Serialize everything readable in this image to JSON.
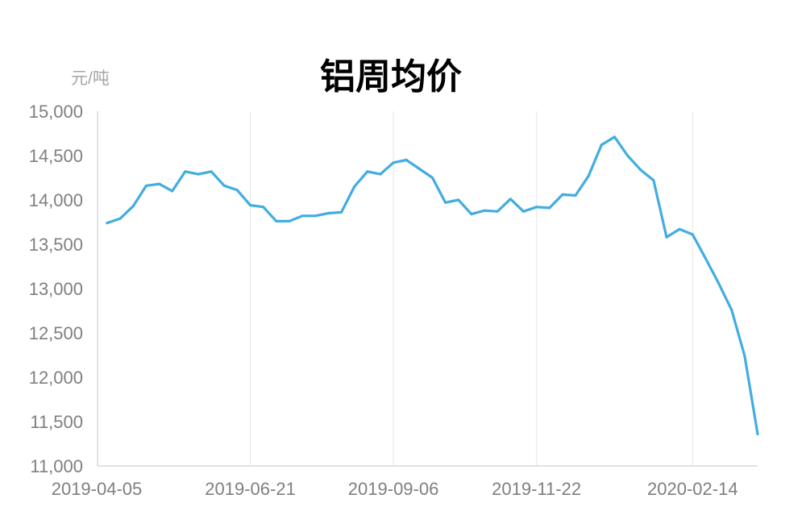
{
  "chart_data": {
    "type": "line",
    "title": "铝周均价",
    "unit_label": "元/吨",
    "xlabel": "",
    "ylabel": "",
    "ylim": [
      11000,
      15000
    ],
    "y_ticks": [
      "11,000",
      "11,500",
      "12,000",
      "12,500",
      "13,000",
      "13,500",
      "14,000",
      "14,500",
      "15,000"
    ],
    "x_ticks": [
      "2019-04-05",
      "2019-06-21",
      "2019-09-06",
      "2019-11-22",
      "2020-02-14"
    ],
    "grid": "vertical",
    "line_color": "#41ade0",
    "series": [
      {
        "values": [
          13740,
          13790,
          13930,
          14160,
          14180,
          14100,
          14320,
          14290,
          14320,
          14160,
          14110,
          13940,
          13920,
          13760,
          13760,
          13820,
          13820,
          13850,
          13860,
          14150,
          14320,
          14290,
          14420,
          14450,
          14350,
          14250,
          13970,
          14000,
          13840,
          13880,
          13870,
          14010,
          13870,
          13920,
          13910,
          14060,
          14050,
          14270,
          14620,
          14710,
          14500,
          14340,
          14220,
          13580,
          13670,
          13610,
          13340,
          13060,
          12760,
          12240,
          11360
        ]
      }
    ]
  }
}
